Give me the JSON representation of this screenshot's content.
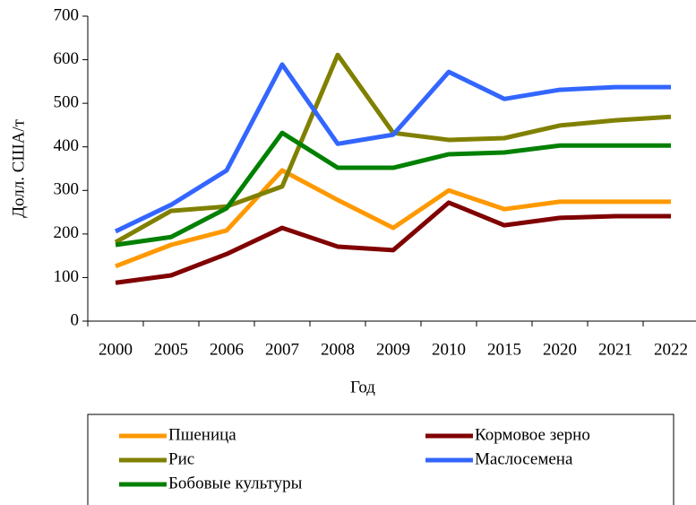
{
  "chart_data": {
    "type": "line",
    "xlabel": "Год",
    "ylabel": "Долл. США/т",
    "categories": [
      "2000",
      "2005",
      "2006",
      "2007",
      "2008",
      "2009",
      "2010",
      "2015",
      "2020",
      "2021",
      "2022"
    ],
    "ylim": [
      0,
      700
    ],
    "yticks": [
      0,
      100,
      200,
      300,
      400,
      500,
      600,
      700
    ],
    "grid": false,
    "legend": "bottom",
    "series": [
      {
        "name": "Пшеница",
        "color": "#ff9900",
        "values": [
          126,
          175,
          208,
          346,
          278,
          214,
          300,
          257,
          274,
          274,
          274
        ]
      },
      {
        "name": "Кормовое зерно",
        "color": "#800000",
        "values": [
          88,
          105,
          154,
          214,
          171,
          163,
          272,
          220,
          237,
          241,
          241
        ]
      },
      {
        "name": "Рис",
        "color": "#808000",
        "values": [
          181,
          253,
          263,
          309,
          611,
          432,
          416,
          420,
          449,
          461,
          469
        ]
      },
      {
        "name": "Маслосемена",
        "color": "#3366ff",
        "values": [
          206,
          267,
          346,
          589,
          407,
          428,
          572,
          510,
          531,
          537,
          537
        ]
      },
      {
        "name": "Бобовые культуры",
        "color": "#008000",
        "values": [
          175,
          193,
          259,
          432,
          352,
          352,
          383,
          387,
          403,
          403,
          403
        ]
      }
    ]
  }
}
